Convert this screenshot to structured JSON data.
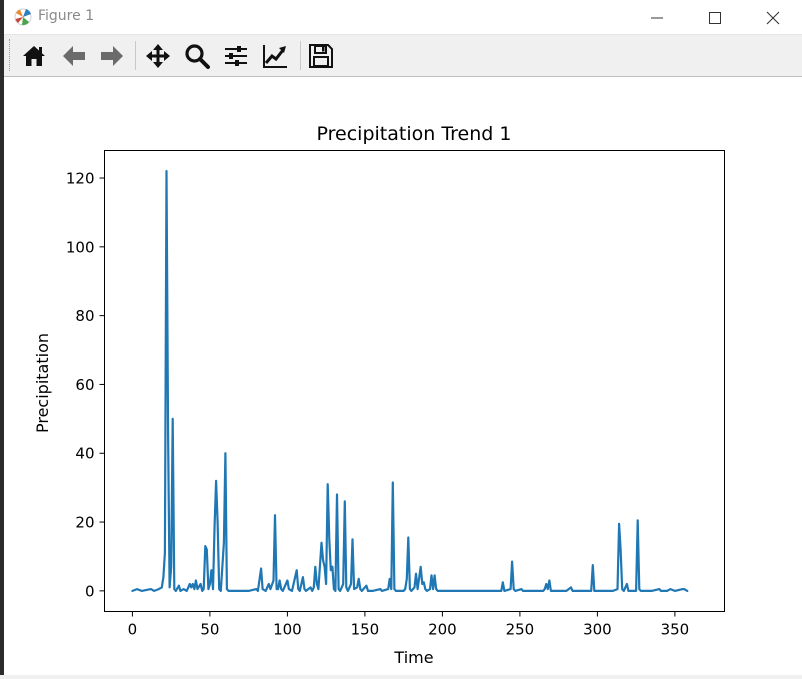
{
  "window": {
    "title": "Figure 1",
    "icon": "matplotlib-logo-icon",
    "controls": [
      "minimize-icon",
      "maximize-icon",
      "close-icon"
    ]
  },
  "toolbar": {
    "buttons": [
      {
        "name": "home",
        "icon": "home-icon"
      },
      {
        "name": "back",
        "icon": "arrow-left-icon"
      },
      {
        "name": "forward",
        "icon": "arrow-right-icon"
      },
      {
        "name": "pan",
        "icon": "move-icon"
      },
      {
        "name": "zoom",
        "icon": "zoom-icon"
      },
      {
        "name": "configure-subplots",
        "icon": "sliders-icon"
      },
      {
        "name": "edit-axis",
        "icon": "chart-edit-icon"
      },
      {
        "name": "save",
        "icon": "floppy-disk-icon"
      }
    ]
  },
  "chart_data": {
    "type": "line",
    "title": "Precipitation Trend 1",
    "xlabel": "Time",
    "ylabel": "Precipitation",
    "xlim": [
      -18,
      382
    ],
    "ylim": [
      -6,
      128
    ],
    "xticks": [
      0,
      50,
      100,
      150,
      200,
      250,
      300,
      350
    ],
    "yticks": [
      0,
      20,
      40,
      60,
      80,
      100,
      120
    ],
    "grid": false,
    "line_color": "#1f77b4",
    "series": [
      {
        "points": [
          [
            0,
            0
          ],
          [
            3,
            0.5
          ],
          [
            6,
            0
          ],
          [
            12,
            0.5
          ],
          [
            14,
            0
          ],
          [
            17,
            0.5
          ],
          [
            19,
            1
          ],
          [
            20,
            4
          ],
          [
            21,
            11
          ],
          [
            22,
            122
          ],
          [
            23,
            45
          ],
          [
            24,
            1
          ],
          [
            25,
            7
          ],
          [
            26,
            50
          ],
          [
            27,
            0.5
          ],
          [
            28,
            0
          ],
          [
            30,
            1.5
          ],
          [
            31,
            0
          ],
          [
            33,
            0.5
          ],
          [
            35,
            0
          ],
          [
            37,
            2
          ],
          [
            38,
            1
          ],
          [
            39,
            2
          ],
          [
            40,
            0.5
          ],
          [
            41,
            3
          ],
          [
            42,
            0.5
          ],
          [
            44,
            2
          ],
          [
            45,
            0
          ],
          [
            46,
            0.5
          ],
          [
            47,
            13
          ],
          [
            48,
            12
          ],
          [
            49,
            0.5
          ],
          [
            50,
            2
          ],
          [
            51,
            6
          ],
          [
            52,
            0.5
          ],
          [
            53,
            19
          ],
          [
            54,
            32
          ],
          [
            55,
            20
          ],
          [
            56,
            0.5
          ],
          [
            57,
            0
          ],
          [
            59,
            14
          ],
          [
            60,
            40
          ],
          [
            61,
            0.5
          ],
          [
            62,
            0
          ],
          [
            75,
            0
          ],
          [
            80,
            0.5
          ],
          [
            81,
            0
          ],
          [
            83,
            6.5
          ],
          [
            84,
            0.5
          ],
          [
            86,
            0
          ],
          [
            88,
            2
          ],
          [
            89,
            0.5
          ],
          [
            91,
            3
          ],
          [
            92,
            22
          ],
          [
            93,
            0.5
          ],
          [
            94,
            0.5
          ],
          [
            95,
            3
          ],
          [
            96,
            0.5
          ],
          [
            97,
            0
          ],
          [
            100,
            3
          ],
          [
            101,
            0.5
          ],
          [
            103,
            0
          ],
          [
            106,
            6
          ],
          [
            107,
            0.5
          ],
          [
            108,
            0
          ],
          [
            110,
            4
          ],
          [
            111,
            0.5
          ],
          [
            112,
            0
          ],
          [
            115,
            1
          ],
          [
            116,
            0
          ],
          [
            117,
            1
          ],
          [
            118,
            7
          ],
          [
            119,
            2
          ],
          [
            120,
            0.5
          ],
          [
            122,
            14
          ],
          [
            123,
            9
          ],
          [
            124,
            7
          ],
          [
            125,
            2
          ],
          [
            126,
            31
          ],
          [
            127,
            15
          ],
          [
            128,
            6
          ],
          [
            129,
            7
          ],
          [
            130,
            0.5
          ],
          [
            131,
            0
          ],
          [
            132,
            28
          ],
          [
            133,
            0.5
          ],
          [
            134,
            0
          ],
          [
            136,
            2
          ],
          [
            137,
            26
          ],
          [
            138,
            1
          ],
          [
            139,
            0
          ],
          [
            141,
            2
          ],
          [
            142,
            15
          ],
          [
            143,
            0.5
          ],
          [
            145,
            1
          ],
          [
            146,
            3.5
          ],
          [
            147,
            0.5
          ],
          [
            148,
            0
          ],
          [
            151,
            1.5
          ],
          [
            152,
            0
          ],
          [
            155,
            0
          ],
          [
            160,
            0.5
          ],
          [
            161,
            0
          ],
          [
            165,
            0.5
          ],
          [
            166,
            3.5
          ],
          [
            167,
            0.5
          ],
          [
            168,
            31.5
          ],
          [
            169,
            0.5
          ],
          [
            170,
            0
          ],
          [
            175,
            0
          ],
          [
            176,
            0.5
          ],
          [
            177,
            3.5
          ],
          [
            178,
            15.5
          ],
          [
            179,
            0.5
          ],
          [
            180,
            0
          ],
          [
            182,
            1
          ],
          [
            183,
            5
          ],
          [
            184,
            0.5
          ],
          [
            186,
            7
          ],
          [
            187,
            2
          ],
          [
            188,
            2.5
          ],
          [
            189,
            0.5
          ],
          [
            190,
            0
          ],
          [
            192,
            0.5
          ],
          [
            193,
            4.5
          ],
          [
            194,
            0.5
          ],
          [
            195,
            4.5
          ],
          [
            196,
            0.5
          ],
          [
            197,
            0
          ],
          [
            220,
            0
          ],
          [
            238,
            0
          ],
          [
            239,
            2.5
          ],
          [
            240,
            0
          ],
          [
            244,
            0.5
          ],
          [
            245,
            8.5
          ],
          [
            246,
            0.5
          ],
          [
            247,
            0
          ],
          [
            251,
            0.5
          ],
          [
            252,
            0
          ],
          [
            265,
            0
          ],
          [
            266,
            0.5
          ],
          [
            267,
            2
          ],
          [
            268,
            0.5
          ],
          [
            269,
            3
          ],
          [
            270,
            0
          ],
          [
            280,
            0
          ],
          [
            283,
            1
          ],
          [
            284,
            0
          ],
          [
            290,
            0
          ],
          [
            296,
            0
          ],
          [
            297,
            7.5
          ],
          [
            298,
            0
          ],
          [
            310,
            0
          ],
          [
            313,
            0.5
          ],
          [
            314,
            19.5
          ],
          [
            315,
            12
          ],
          [
            316,
            0.5
          ],
          [
            317,
            0
          ],
          [
            319,
            2
          ],
          [
            320,
            0
          ],
          [
            325,
            0
          ],
          [
            326,
            20.5
          ],
          [
            327,
            0.5
          ],
          [
            328,
            0
          ],
          [
            335,
            0
          ],
          [
            340,
            0.5
          ],
          [
            341,
            0
          ],
          [
            345,
            0
          ],
          [
            347,
            0.5
          ],
          [
            350,
            0
          ],
          [
            355,
            0.5
          ],
          [
            356,
            0.5
          ],
          [
            358,
            0
          ]
        ]
      }
    ]
  }
}
